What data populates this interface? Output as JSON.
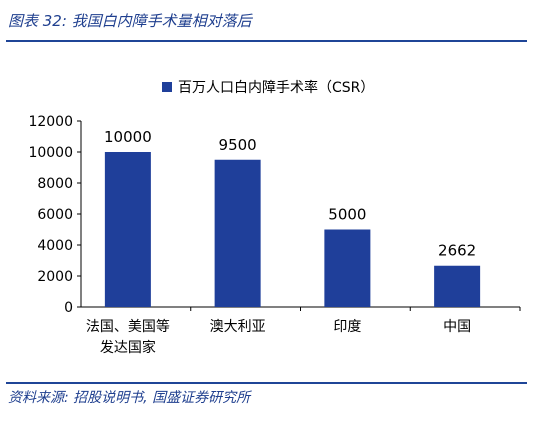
{
  "header": {
    "title": "图表 32:  我国白内障手术量相对落后"
  },
  "footer": {
    "source": "资料来源:  招股说明书,  国盛证券研究所"
  },
  "colors": {
    "bar": "#1f3f9a",
    "rule": "#1f4597",
    "text_accent": "#1f3f8f"
  },
  "chart_data": {
    "type": "bar",
    "title": "",
    "xlabel": "",
    "ylabel": "",
    "legend": {
      "position": "top-center",
      "entries": [
        "百万人口白内障手术率（CSR）"
      ]
    },
    "categories": [
      {
        "lines": [
          "法国、美国等",
          "发达国家"
        ]
      },
      {
        "lines": [
          "澳大利亚"
        ]
      },
      {
        "lines": [
          "印度"
        ]
      },
      {
        "lines": [
          "中国"
        ]
      }
    ],
    "series": [
      {
        "name": "百万人口白内障手术率（CSR）",
        "values": [
          10000,
          9500,
          5000,
          2662
        ]
      }
    ],
    "data_labels": [
      "10000",
      "9500",
      "5000",
      "2662"
    ],
    "ylim": [
      0,
      12000
    ],
    "yticks": [
      "0",
      "2000",
      "4000",
      "6000",
      "8000",
      "10000",
      "12000"
    ],
    "grid": false
  }
}
